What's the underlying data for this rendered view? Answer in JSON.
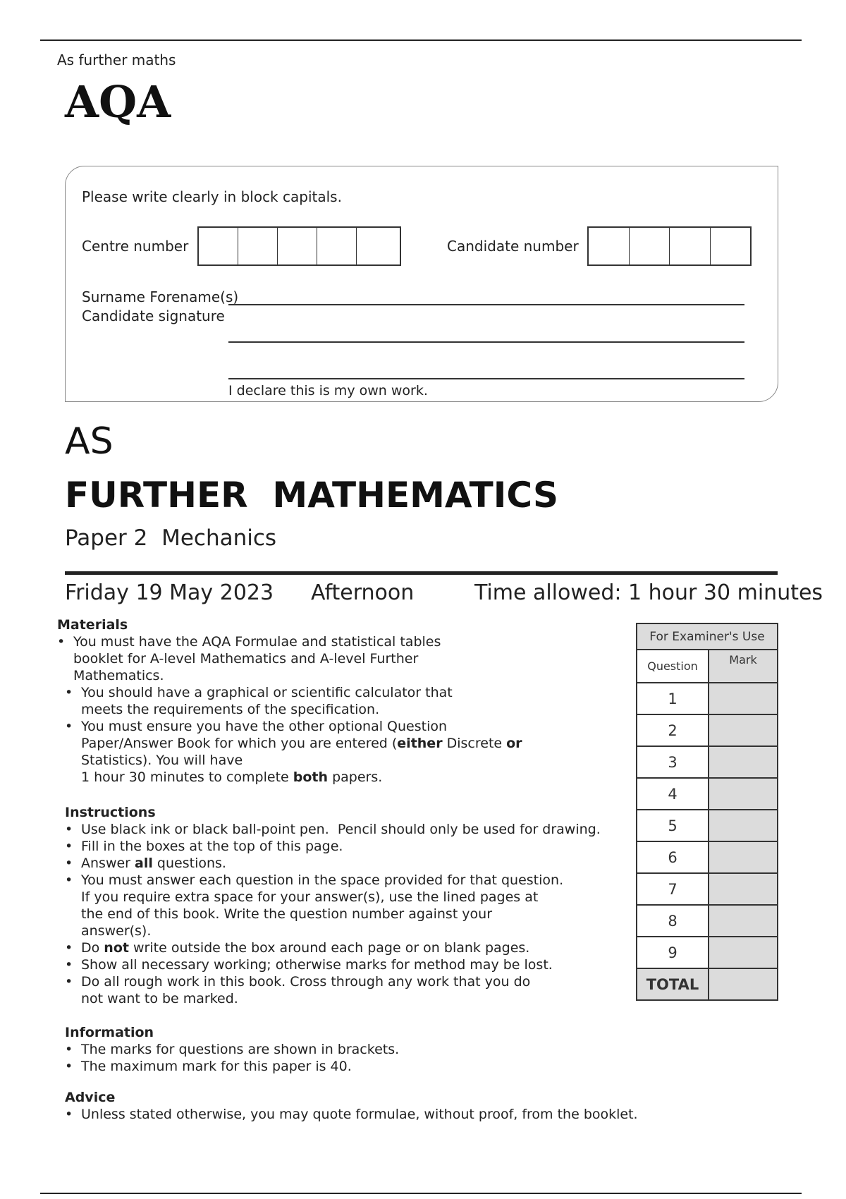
{
  "header": {
    "subtitle": "As further maths",
    "logo": "AQA"
  },
  "form": {
    "instruction": "Please write clearly in block capitals.",
    "centre_label": "Centre number",
    "candidate_label": "Candidate number",
    "surname_label": "Surname Forename(s)",
    "signature_label": "Candidate signature",
    "declaration": "I declare this is my own work."
  },
  "title": {
    "level": "AS",
    "subject": "FURTHER  MATHEMATICS",
    "paper": "Paper 2  Mechanics"
  },
  "exam": {
    "date": "Friday 19 May 2023",
    "session": "Afternoon",
    "time": "Time allowed: 1 hour 30 minutes"
  },
  "sections": [
    {
      "heading": "Materials",
      "items": [
        [
          [
            [
              "You must have the AQA Formulae and statistical tables",
              0
            ]
          ],
          [
            [
              "booklet for A-level Mathematics and A-level Further",
              0
            ]
          ],
          [
            [
              "Mathematics.",
              0
            ]
          ]
        ],
        [
          [
            [
              "You should have a graphical or scientific calculator that",
              0
            ]
          ],
          [
            [
              "meets the requirements of the specification.",
              0
            ]
          ]
        ],
        [
          [
            [
              "You must ensure you have the other optional Question",
              0
            ]
          ],
          [
            [
              "Paper/Answer Book for which you are entered (",
              0
            ],
            [
              "either",
              1
            ],
            [
              " Discrete ",
              0
            ],
            [
              "or",
              1
            ]
          ],
          [
            [
              "Statistics). You will have",
              0
            ]
          ],
          [
            [
              "1 hour 30 minutes to complete ",
              0
            ],
            [
              "both",
              1
            ],
            [
              " papers.",
              0
            ]
          ]
        ]
      ]
    },
    {
      "heading": "Instructions",
      "items": [
        [
          [
            [
              "Use black ink or black ball-point pen.  Pencil should only be used for drawing.",
              0
            ]
          ]
        ],
        [
          [
            [
              "Fill in the boxes at the top of this page.",
              0
            ]
          ]
        ],
        [
          [
            [
              "Answer ",
              0
            ],
            [
              "all",
              1
            ],
            [
              " questions.",
              0
            ]
          ]
        ],
        [
          [
            [
              "You must answer each question in the space provided for that question.",
              0
            ]
          ],
          [
            [
              "If you require extra space for your answer(s), use the lined pages at",
              0
            ]
          ],
          [
            [
              "the end of this book. Write the question number against your",
              0
            ]
          ],
          [
            [
              "answer(s).",
              0
            ]
          ]
        ],
        [
          [
            [
              "Do ",
              0
            ],
            [
              "not",
              1
            ],
            [
              " write outside the box around each page or on blank pages.",
              0
            ]
          ]
        ],
        [
          [
            [
              "Show all necessary working; otherwise marks for method may be lost.",
              0
            ]
          ]
        ],
        [
          [
            [
              "Do all rough work in this book. Cross through any work that you do",
              0
            ]
          ],
          [
            [
              "not want to be marked.",
              0
            ]
          ]
        ]
      ]
    },
    {
      "heading": "Information",
      "items": [
        [
          [
            [
              "The marks for questions are shown in brackets.",
              0
            ]
          ]
        ],
        [
          [
            [
              "The maximum mark for this paper is 40.",
              0
            ]
          ]
        ]
      ]
    },
    {
      "heading": "Advice",
      "items": [
        [
          [
            [
              "Unless stated otherwise, you may quote formulae, without proof, from the booklet.",
              0
            ]
          ]
        ]
      ]
    }
  ],
  "examiner": {
    "title": "For Examiner's Use",
    "col_question": "Question",
    "col_mark": "Mark",
    "questions": [
      "1",
      "2",
      "3",
      "4",
      "5",
      "6",
      "7",
      "8",
      "9"
    ],
    "total": "TOTAL"
  }
}
